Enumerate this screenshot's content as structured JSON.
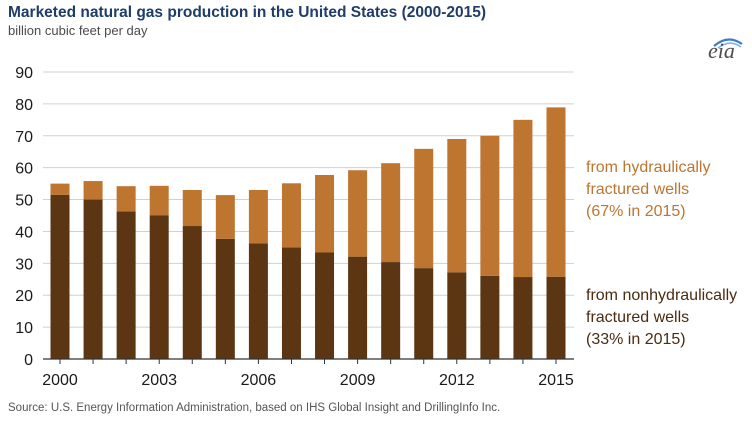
{
  "header": {
    "title": "Marketed natural gas production in the United States (2000-2015)",
    "subtitle": "billion cubic feet per day",
    "logo_text": "eia"
  },
  "footer": {
    "source": "Source:  U.S. Energy Information Administration, based on IHS Global Insight and DrillingInfo Inc."
  },
  "annotations": {
    "hf": {
      "line1": "from hydraulically",
      "line2": "fractured wells",
      "line3": "(67% in 2015)"
    },
    "nonhf": {
      "line1": "from nonhydraulically",
      "line2": "fractured wells",
      "line3": "(33% in 2015)"
    }
  },
  "colors": {
    "nonhf": "#5c3613",
    "hf": "#bd7530",
    "grid": "#d0d0d0",
    "axis": "#333333"
  },
  "chart_data": {
    "type": "bar",
    "stacked": true,
    "categories": [
      "2000",
      "2001",
      "2002",
      "2003",
      "2004",
      "2005",
      "2006",
      "2007",
      "2008",
      "2009",
      "2010",
      "2011",
      "2012",
      "2013",
      "2014",
      "2015"
    ],
    "x_tick_labels": [
      "2000",
      "2003",
      "2006",
      "2009",
      "2012",
      "2015"
    ],
    "series": [
      {
        "name": "from nonhydraulically fractured wells",
        "values": [
          51.5,
          50.0,
          46.3,
          45.0,
          41.7,
          37.7,
          36.3,
          35.0,
          33.4,
          32.1,
          30.4,
          28.5,
          27.2,
          26.1,
          25.7,
          25.8
        ]
      },
      {
        "name": "from hydraulically fractured wells",
        "values": [
          3.5,
          5.8,
          7.9,
          9.3,
          11.3,
          13.7,
          16.7,
          20.1,
          24.3,
          27.1,
          31.0,
          37.4,
          41.8,
          43.9,
          49.3,
          53.1
        ]
      }
    ],
    "ylabel": "billion cubic feet per day",
    "ylim": [
      0,
      90
    ],
    "yticks": [
      0,
      10,
      20,
      30,
      40,
      50,
      60,
      70,
      80,
      90
    ],
    "grid": true
  }
}
